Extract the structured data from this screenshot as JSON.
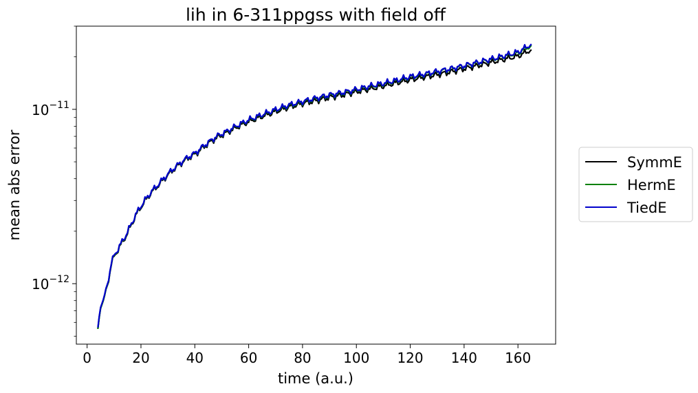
{
  "chart_data": {
    "type": "line",
    "title": "lih in 6-311ppgss with field off",
    "xlabel": "time (a.u.)",
    "ylabel": "mean abs error",
    "xlim": [
      -4,
      174
    ],
    "ylim": [
      4.5e-13,
      3e-11
    ],
    "yscale": "log",
    "xticks": [
      0,
      20,
      40,
      60,
      80,
      100,
      120,
      140,
      160
    ],
    "xtick_labels": [
      "0",
      "20",
      "40",
      "60",
      "80",
      "100",
      "120",
      "140",
      "160"
    ],
    "yticks": [
      {
        "value": 1e-12,
        "base": "10",
        "exponent": "−12"
      },
      {
        "value": 1e-11,
        "base": "10",
        "exponent": "−11"
      }
    ],
    "legend_position": "outside-right",
    "series": [
      {
        "name": "SymmE",
        "color": "#000000",
        "x": [
          4,
          4.5,
          5,
          6,
          7,
          8,
          9,
          10,
          12,
          14,
          16,
          18,
          20,
          22,
          24,
          26,
          28,
          30,
          32,
          34,
          36,
          38,
          40,
          44,
          48,
          52,
          56,
          60,
          65,
          70,
          75,
          80,
          85,
          90,
          95,
          100,
          105,
          110,
          115,
          120,
          125,
          130,
          135,
          140,
          145,
          150,
          155,
          160,
          165
        ],
        "y": [
          5.5e-13,
          6.4e-13,
          7.2e-13,
          8e-13,
          9e-13,
          1.06e-12,
          1.3e-12,
          1.42e-12,
          1.62e-12,
          1.82e-12,
          2.1e-12,
          2.45e-12,
          2.75e-12,
          3.05e-12,
          3.35e-12,
          3.6e-12,
          3.9e-12,
          4.2e-12,
          4.5e-12,
          4.78e-12,
          5.05e-12,
          5.3e-12,
          5.5e-12,
          6.2e-12,
          6.85e-12,
          7.35e-12,
          7.95e-12,
          8.5e-12,
          9.1e-12,
          9.7e-12,
          1.03e-11,
          1.08e-11,
          1.12e-11,
          1.17e-11,
          1.21e-11,
          1.26e-11,
          1.31e-11,
          1.36e-11,
          1.42e-11,
          1.48e-11,
          1.53e-11,
          1.58e-11,
          1.64e-11,
          1.71e-11,
          1.78e-11,
          1.86e-11,
          1.94e-11,
          2.02e-11,
          2.2e-11
        ]
      },
      {
        "name": "HermE",
        "color": "#008000",
        "x": [
          4,
          4.5,
          5,
          6,
          7,
          8,
          9,
          10,
          12,
          14,
          16,
          18,
          20,
          22,
          24,
          26,
          28,
          30,
          32,
          34,
          36,
          38,
          40,
          44,
          48,
          52,
          56,
          60,
          65,
          70,
          75,
          80,
          85,
          90,
          95,
          100,
          105,
          110,
          115,
          120,
          125,
          130,
          135,
          140,
          145,
          150,
          155,
          160,
          165
        ],
        "y": [
          5.5e-13,
          6.4e-13,
          7.2e-13,
          8e-13,
          9e-13,
          1.07e-12,
          1.31e-12,
          1.43e-12,
          1.63e-12,
          1.84e-12,
          2.12e-12,
          2.47e-12,
          2.78e-12,
          3.08e-12,
          3.38e-12,
          3.64e-12,
          3.94e-12,
          4.24e-12,
          4.55e-12,
          4.83e-12,
          5.1e-12,
          5.36e-12,
          5.57e-12,
          6.28e-12,
          6.95e-12,
          7.46e-12,
          8.08e-12,
          8.65e-12,
          9.27e-12,
          9.9e-12,
          1.05e-11,
          1.1e-11,
          1.15e-11,
          1.2e-11,
          1.24e-11,
          1.29e-11,
          1.35e-11,
          1.4e-11,
          1.46e-11,
          1.53e-11,
          1.58e-11,
          1.64e-11,
          1.7e-11,
          1.77e-11,
          1.85e-11,
          1.93e-11,
          2.02e-11,
          2.11e-11,
          2.33e-11
        ]
      },
      {
        "name": "TiedE",
        "color": "#0000cc",
        "x": [
          4,
          4.5,
          5,
          6,
          7,
          8,
          9,
          10,
          12,
          14,
          16,
          18,
          20,
          22,
          24,
          26,
          28,
          30,
          32,
          34,
          36,
          38,
          40,
          44,
          48,
          52,
          56,
          60,
          65,
          70,
          75,
          80,
          85,
          90,
          95,
          100,
          105,
          110,
          115,
          120,
          125,
          130,
          135,
          140,
          145,
          150,
          155,
          160,
          165
        ],
        "y": [
          5.6e-13,
          6.5e-13,
          7.3e-13,
          8.1e-13,
          9.1e-13,
          1.08e-12,
          1.32e-12,
          1.44e-12,
          1.64e-12,
          1.85e-12,
          2.13e-12,
          2.48e-12,
          2.79e-12,
          3.09e-12,
          3.39e-12,
          3.65e-12,
          3.95e-12,
          4.25e-12,
          4.56e-12,
          4.84e-12,
          5.12e-12,
          5.38e-12,
          5.6e-12,
          6.3e-12,
          6.98e-12,
          7.5e-12,
          8.12e-12,
          8.7e-12,
          9.32e-12,
          9.96e-12,
          1.06e-11,
          1.11e-11,
          1.16e-11,
          1.21e-11,
          1.25e-11,
          1.3e-11,
          1.36e-11,
          1.41e-11,
          1.47e-11,
          1.54e-11,
          1.59e-11,
          1.65e-11,
          1.71e-11,
          1.78e-11,
          1.86e-11,
          1.94e-11,
          2.03e-11,
          2.13e-11,
          2.37e-11
        ]
      }
    ]
  }
}
